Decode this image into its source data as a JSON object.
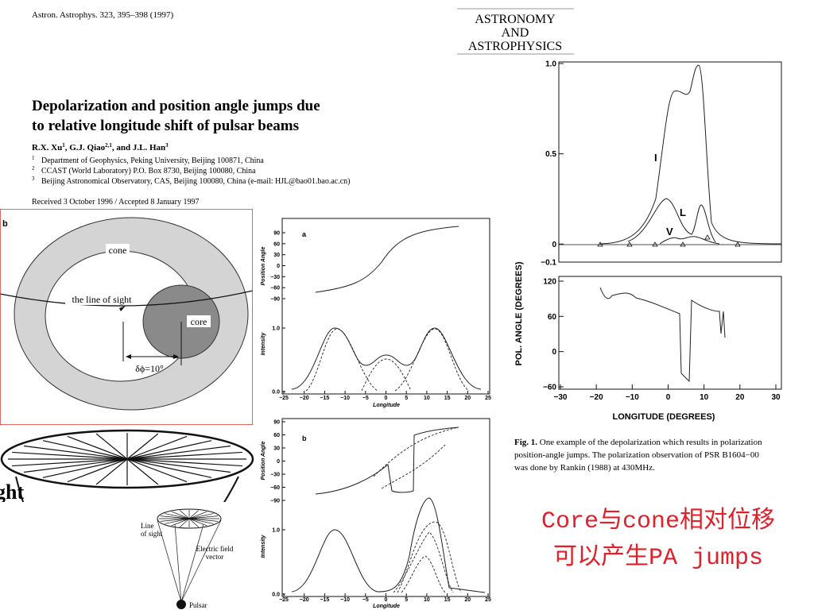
{
  "header": {
    "citation": "Astron. Astrophys. 323, 395–398 (1997)",
    "journal_logo": [
      "ASTRONOMY",
      "AND",
      "ASTROPHYSICS"
    ]
  },
  "paper": {
    "title": [
      "Depolarization and position angle jumps due",
      "to relative longitude shift of pulsar beams"
    ],
    "authors": [
      {
        "name": "R.X. Xu",
        "affil": "1"
      },
      {
        "name": "G.J. Qiao",
        "affil": "2,1"
      },
      {
        "name": "J.L. Han",
        "affil": "3"
      }
    ],
    "author_separators": [
      ", ",
      ", and "
    ],
    "affiliations": [
      {
        "mark": "1",
        "text": "Department of Geophysics, Peking University, Beijing 100871, China"
      },
      {
        "mark": "2",
        "text": "CCAST (World Laboratory) P.O. Box 8730, Beijing 100080, China"
      },
      {
        "mark": "3",
        "text": "Beijing Astronomical Observatory, CAS, Beijing 100080, China (e-mail: HJL@bao01.bao.ac.cn)"
      }
    ],
    "received": "Received 3 October 1996 / Accepted 8 January 1997"
  },
  "beam_diagram": {
    "label": "b",
    "cone": "cone",
    "line_of_sight": "the line of sight",
    "core": "core",
    "shift": "δϕ=10°"
  },
  "fan_diagram": {
    "partial_label": "ght",
    "line_of_sight": [
      "Line",
      "of sight"
    ],
    "field": [
      "Electric field",
      "vector"
    ],
    "pulsar": "Pulsar"
  },
  "plots": [
    {
      "label": "a",
      "pa_axis_label": "Position Angle",
      "intensity_axis_label": "Intensity",
      "x_axis_label": "Longitude",
      "pa_ylim": [
        -90,
        90
      ],
      "pa_yticks": [
        90,
        60,
        30,
        0,
        {
          "value": -30,
          "label": "−30"
        },
        {
          "value": -60,
          "label": "−60"
        },
        {
          "value": -90,
          "label": "−90"
        }
      ],
      "intensity_ylim": [
        0,
        1
      ],
      "intensity_yticks": [
        {
          "value": 1,
          "label": "1.0"
        },
        {
          "value": 0,
          "label": "0.0"
        }
      ],
      "xlim": [
        -25,
        25
      ],
      "xticks": [
        {
          "value": -25,
          "label": "−25"
        },
        {
          "value": -20,
          "label": "−20"
        },
        {
          "value": -15,
          "label": "−15"
        },
        {
          "value": -10,
          "label": "−10"
        },
        {
          "value": -5,
          "label": "−5"
        },
        0,
        5,
        10,
        15,
        20,
        25
      ]
    },
    {
      "label": "b",
      "pa_axis_label": "Position Angle",
      "intensity_axis_label": "Intensity",
      "x_axis_label": "Longitude",
      "pa_ylim": [
        -90,
        90
      ],
      "pa_yticks": [
        90,
        60,
        30,
        0,
        {
          "value": -30,
          "label": "−30"
        },
        {
          "value": -60,
          "label": "−60"
        },
        {
          "value": -90,
          "label": "−90"
        }
      ],
      "intensity_ylim": [
        0,
        1
      ],
      "intensity_yticks": [
        {
          "value": 1,
          "label": "1.0"
        },
        {
          "value": 0,
          "label": "0.0"
        }
      ],
      "xlim": [
        -25,
        25
      ],
      "xticks": [
        {
          "value": -25,
          "label": "−25"
        },
        {
          "value": -20,
          "label": "−20"
        },
        {
          "value": -15,
          "label": "−15"
        },
        {
          "value": -10,
          "label": "−10"
        },
        {
          "value": -5,
          "label": "−5"
        },
        0,
        5,
        10,
        15,
        20,
        25
      ]
    }
  ],
  "figure_1": {
    "intensity_ylim": [
      -0.1,
      1
    ],
    "intensity_yticks": [
      {
        "value": 1,
        "label": "1.0"
      },
      0.5,
      0,
      {
        "value": -0.1,
        "label": "−0.1"
      }
    ],
    "pa_ylim": [
      -60,
      120
    ],
    "pa_yticks": [
      120,
      60,
      0,
      {
        "value": -60,
        "label": "−60"
      }
    ],
    "xlim": [
      -30,
      30
    ],
    "xticks": [
      {
        "value": -30,
        "label": "−30"
      },
      {
        "value": -20,
        "label": "−20"
      },
      {
        "value": -10,
        "label": "−10"
      },
      0,
      10,
      20,
      30
    ],
    "curve_labels": [
      "I",
      "L",
      "V"
    ],
    "y_axis_label": "POL. ANGLE (DEGREES)",
    "x_axis_label": "LONGITUDE (DEGREES)",
    "caption_label": "Fig. 1.",
    "caption": [
      "One example of the depolarization which results in polarization",
      "position-angle jumps. The polarization observation of PSR B1604−00",
      "was done by Rankin (1988) at 430MHz."
    ]
  },
  "annotation": [
    "Core与cone相对位移",
    "可以产生PA jumps"
  ]
}
